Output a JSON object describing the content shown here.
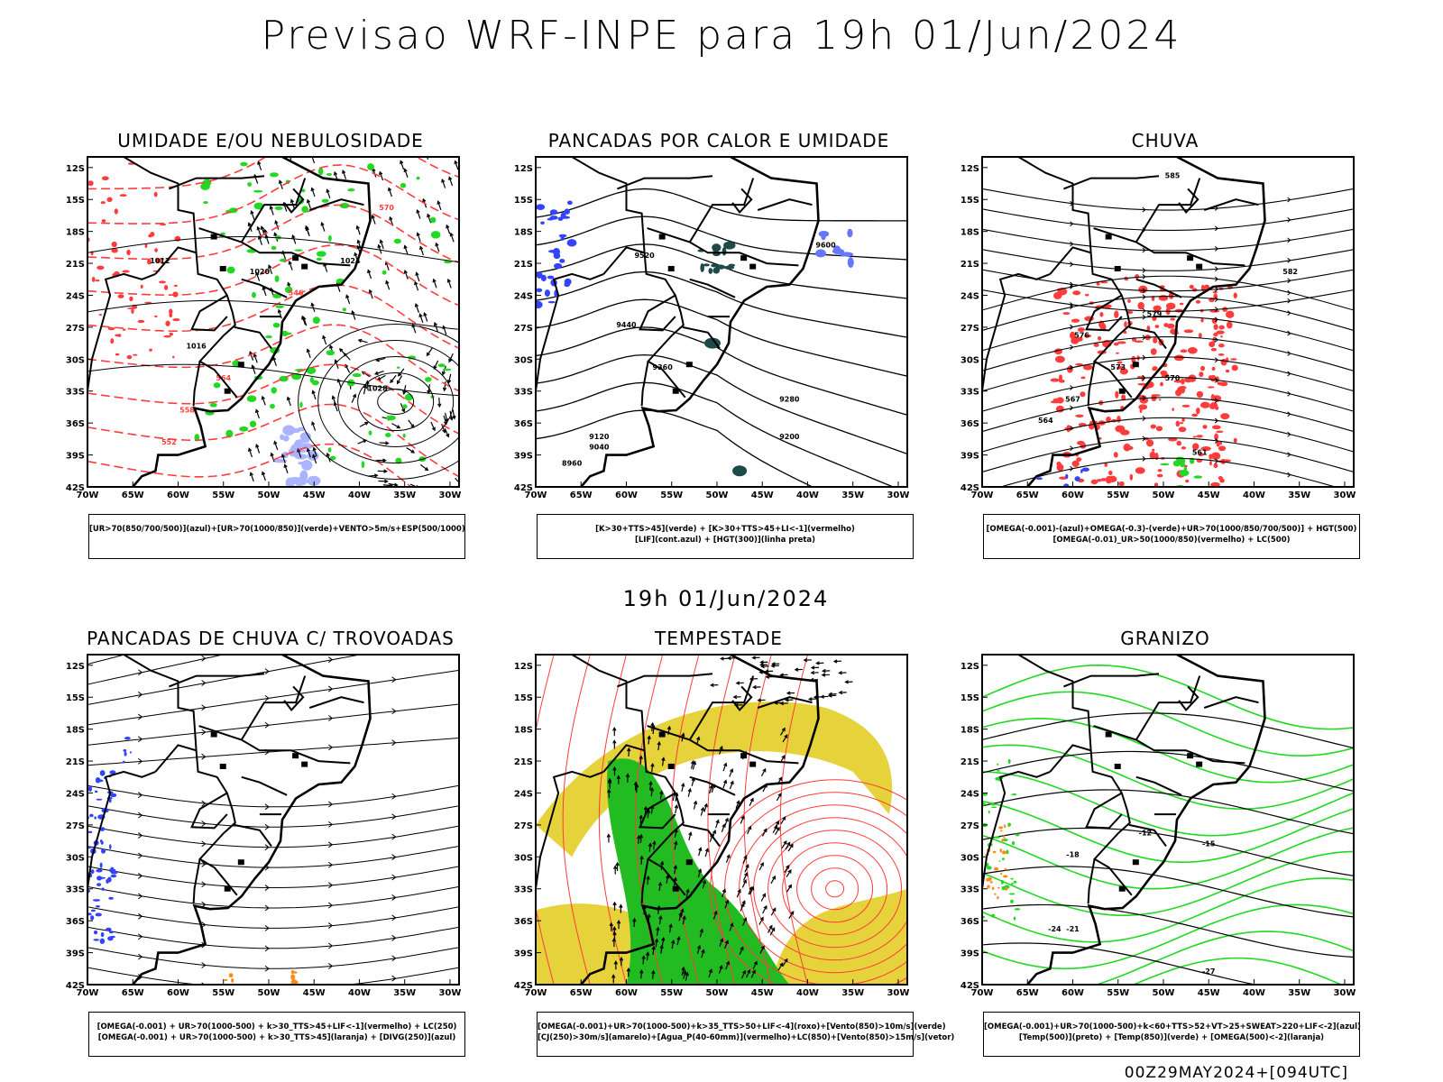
{
  "header": {
    "title": "Previsao WRF-INPE  para 19h 01/Jun/2024"
  },
  "middle": {
    "label": "19h 01/Jun/2024"
  },
  "footer": {
    "stamp": "00Z29MAY2024+[094UTC]"
  },
  "axes": {
    "lat_labels": [
      "12S",
      "15S",
      "18S",
      "21S",
      "24S",
      "27S",
      "30S",
      "33S",
      "36S",
      "39S",
      "42S"
    ],
    "lon_labels": [
      "70W",
      "65W",
      "60W",
      "55W",
      "50W",
      "45W",
      "40W",
      "35W",
      "30W"
    ]
  },
  "colors": {
    "red": "#ff3c3c",
    "green": "#22d822",
    "blue": "#3344ff",
    "yellow": "#e6d23a",
    "greenfill": "#22bb22",
    "orange": "#ff8c1a",
    "darkteal": "#1f4a4a"
  },
  "panels": [
    {
      "title": "UMIDADE E/OU NEBULOSIDADE",
      "caption": [
        "[UR>70(850/700/500)](azul)+[UR>70(1000/850)](verde)+VENTO>5m/s+ESP(500/1000)"
      ],
      "contour_labels": [
        "1012",
        "1016",
        "1020",
        "1024",
        "1028",
        "570",
        "564",
        "558",
        "552",
        "546"
      ]
    },
    {
      "title": "PANCADAS POR CALOR E UMIDADE",
      "caption": [
        "[K>30+TTS>45](verde) + [K>30+TTS>45+LI<-1](vermelho)",
        "[LIF](cont.azul) + [HGT(300)](linha preta)"
      ],
      "contour_labels": [
        "9600",
        "9520",
        "9440",
        "9360",
        "9280",
        "9200",
        "9120",
        "9040",
        "8960"
      ]
    },
    {
      "title": "CHUVA",
      "caption": [
        "[OMEGA(-0.001)-(azul)+OMEGA(-0.3)-(verde)+UR>70(1000/850/700/500)] + HGT(500)",
        "[OMEGA(-0.01)_UR>50(1000/850)(vermelho) + LC(500)"
      ],
      "contour_labels": [
        "585",
        "582",
        "579",
        "576",
        "573",
        "570",
        "567",
        "564",
        "561"
      ]
    },
    {
      "title": "PANCADAS DE CHUVA C/ TROVOADAS",
      "caption": [
        "[OMEGA(-0.001) + UR>70(1000-500) + k>30_TTS>45+LIF<-1](vermelho) + LC(250)",
        "[OMEGA(-0.001) + UR>70(1000-500) + k>30_TTS>45](laranja) + [DIVG(250)](azul)"
      ],
      "contour_labels": []
    },
    {
      "title": "TEMPESTADE",
      "caption": [
        "[OMEGA(-0.001)+UR>70(1000-500)+k>35_TTS>50+LIF<-4](roxo)+[Vento(850)>10m/s](verde)",
        "[CJ(250)>30m/s](amarelo)+[Agua_P(40-60mm)](vermelho)+LC(850)+[Vento(850)>15m/s](vetor)"
      ],
      "contour_labels": []
    },
    {
      "title": "GRANIZO",
      "caption": [
        "[OMEGA(-0.001)+UR>70(1000-500)+k<60+TTS>52+VT>25+SWEAT>220+LIF<-2](azul)",
        "[Temp(500)](preto) + [Temp(850)](verde) + [OMEGA(500)<-2](laranja)"
      ],
      "contour_labels": [
        "-12",
        "-15",
        "-18",
        "-21",
        "-24",
        "-27"
      ]
    }
  ]
}
